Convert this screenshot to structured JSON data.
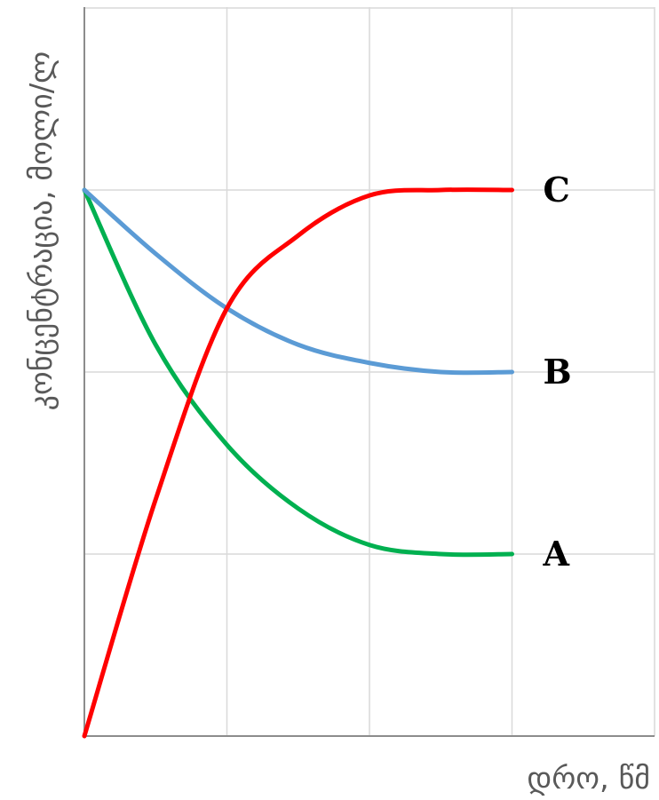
{
  "chart_data": {
    "type": "line",
    "title": "",
    "xlabel": "დრო, წმ",
    "ylabel": "კონცენტრაცია, მოლი/ლ",
    "xlim": [
      0,
      4
    ],
    "ylim": [
      0,
      4
    ],
    "grid": true,
    "tick_labels_shown": false,
    "series": [
      {
        "name": "A",
        "color": "#00b050",
        "x": [
          0,
          0.5,
          1,
          1.5,
          2,
          2.5,
          3
        ],
        "y": [
          3,
          2.15,
          1.6,
          1.25,
          1.05,
          1.0,
          1.0
        ]
      },
      {
        "name": "B",
        "color": "#5b9bd5",
        "x": [
          0,
          0.5,
          1,
          1.5,
          2,
          2.5,
          3
        ],
        "y": [
          3,
          2.65,
          2.35,
          2.15,
          2.05,
          2.0,
          2.0
        ]
      },
      {
        "name": "C",
        "color": "#ff0000",
        "x": [
          0,
          0.5,
          1,
          1.5,
          2,
          2.5,
          3
        ],
        "y": [
          0,
          1.3,
          2.35,
          2.75,
          2.97,
          3.0,
          3.0
        ]
      }
    ]
  }
}
